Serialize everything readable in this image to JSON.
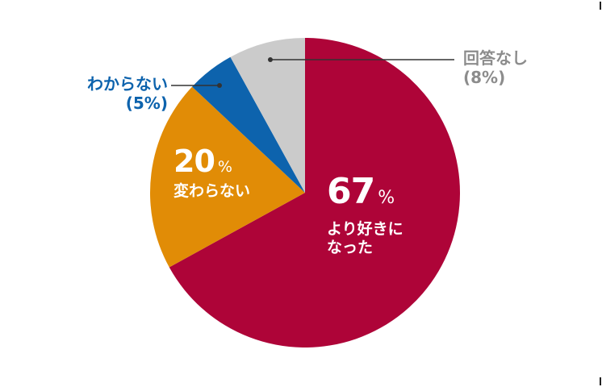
{
  "chart_data": {
    "type": "pie",
    "title": "",
    "slices": [
      {
        "label": "より好きになった",
        "value": 67,
        "color": "#AE0438"
      },
      {
        "label": "変わらない",
        "value": 20,
        "color": "#E18C06"
      },
      {
        "label": "わからない",
        "value": 5,
        "color": "#0D63AD"
      },
      {
        "label": "回答なし",
        "value": 8,
        "color": "#CBCBCB"
      }
    ],
    "start_angle_deg": 0,
    "direction": "clockwise"
  },
  "labels": {
    "liked_more": {
      "pct": "67",
      "sign": "%",
      "line1": "より好きに",
      "line2": "なった"
    },
    "no_change": {
      "pct": "20",
      "sign": "%",
      "text": "変わらない"
    },
    "dont_know": {
      "text": "わからない",
      "pct": "(5%)",
      "color": "#0D63AD"
    },
    "no_answer": {
      "text": "回答なし",
      "pct": "(8%)",
      "color": "#8C8C8C"
    }
  }
}
